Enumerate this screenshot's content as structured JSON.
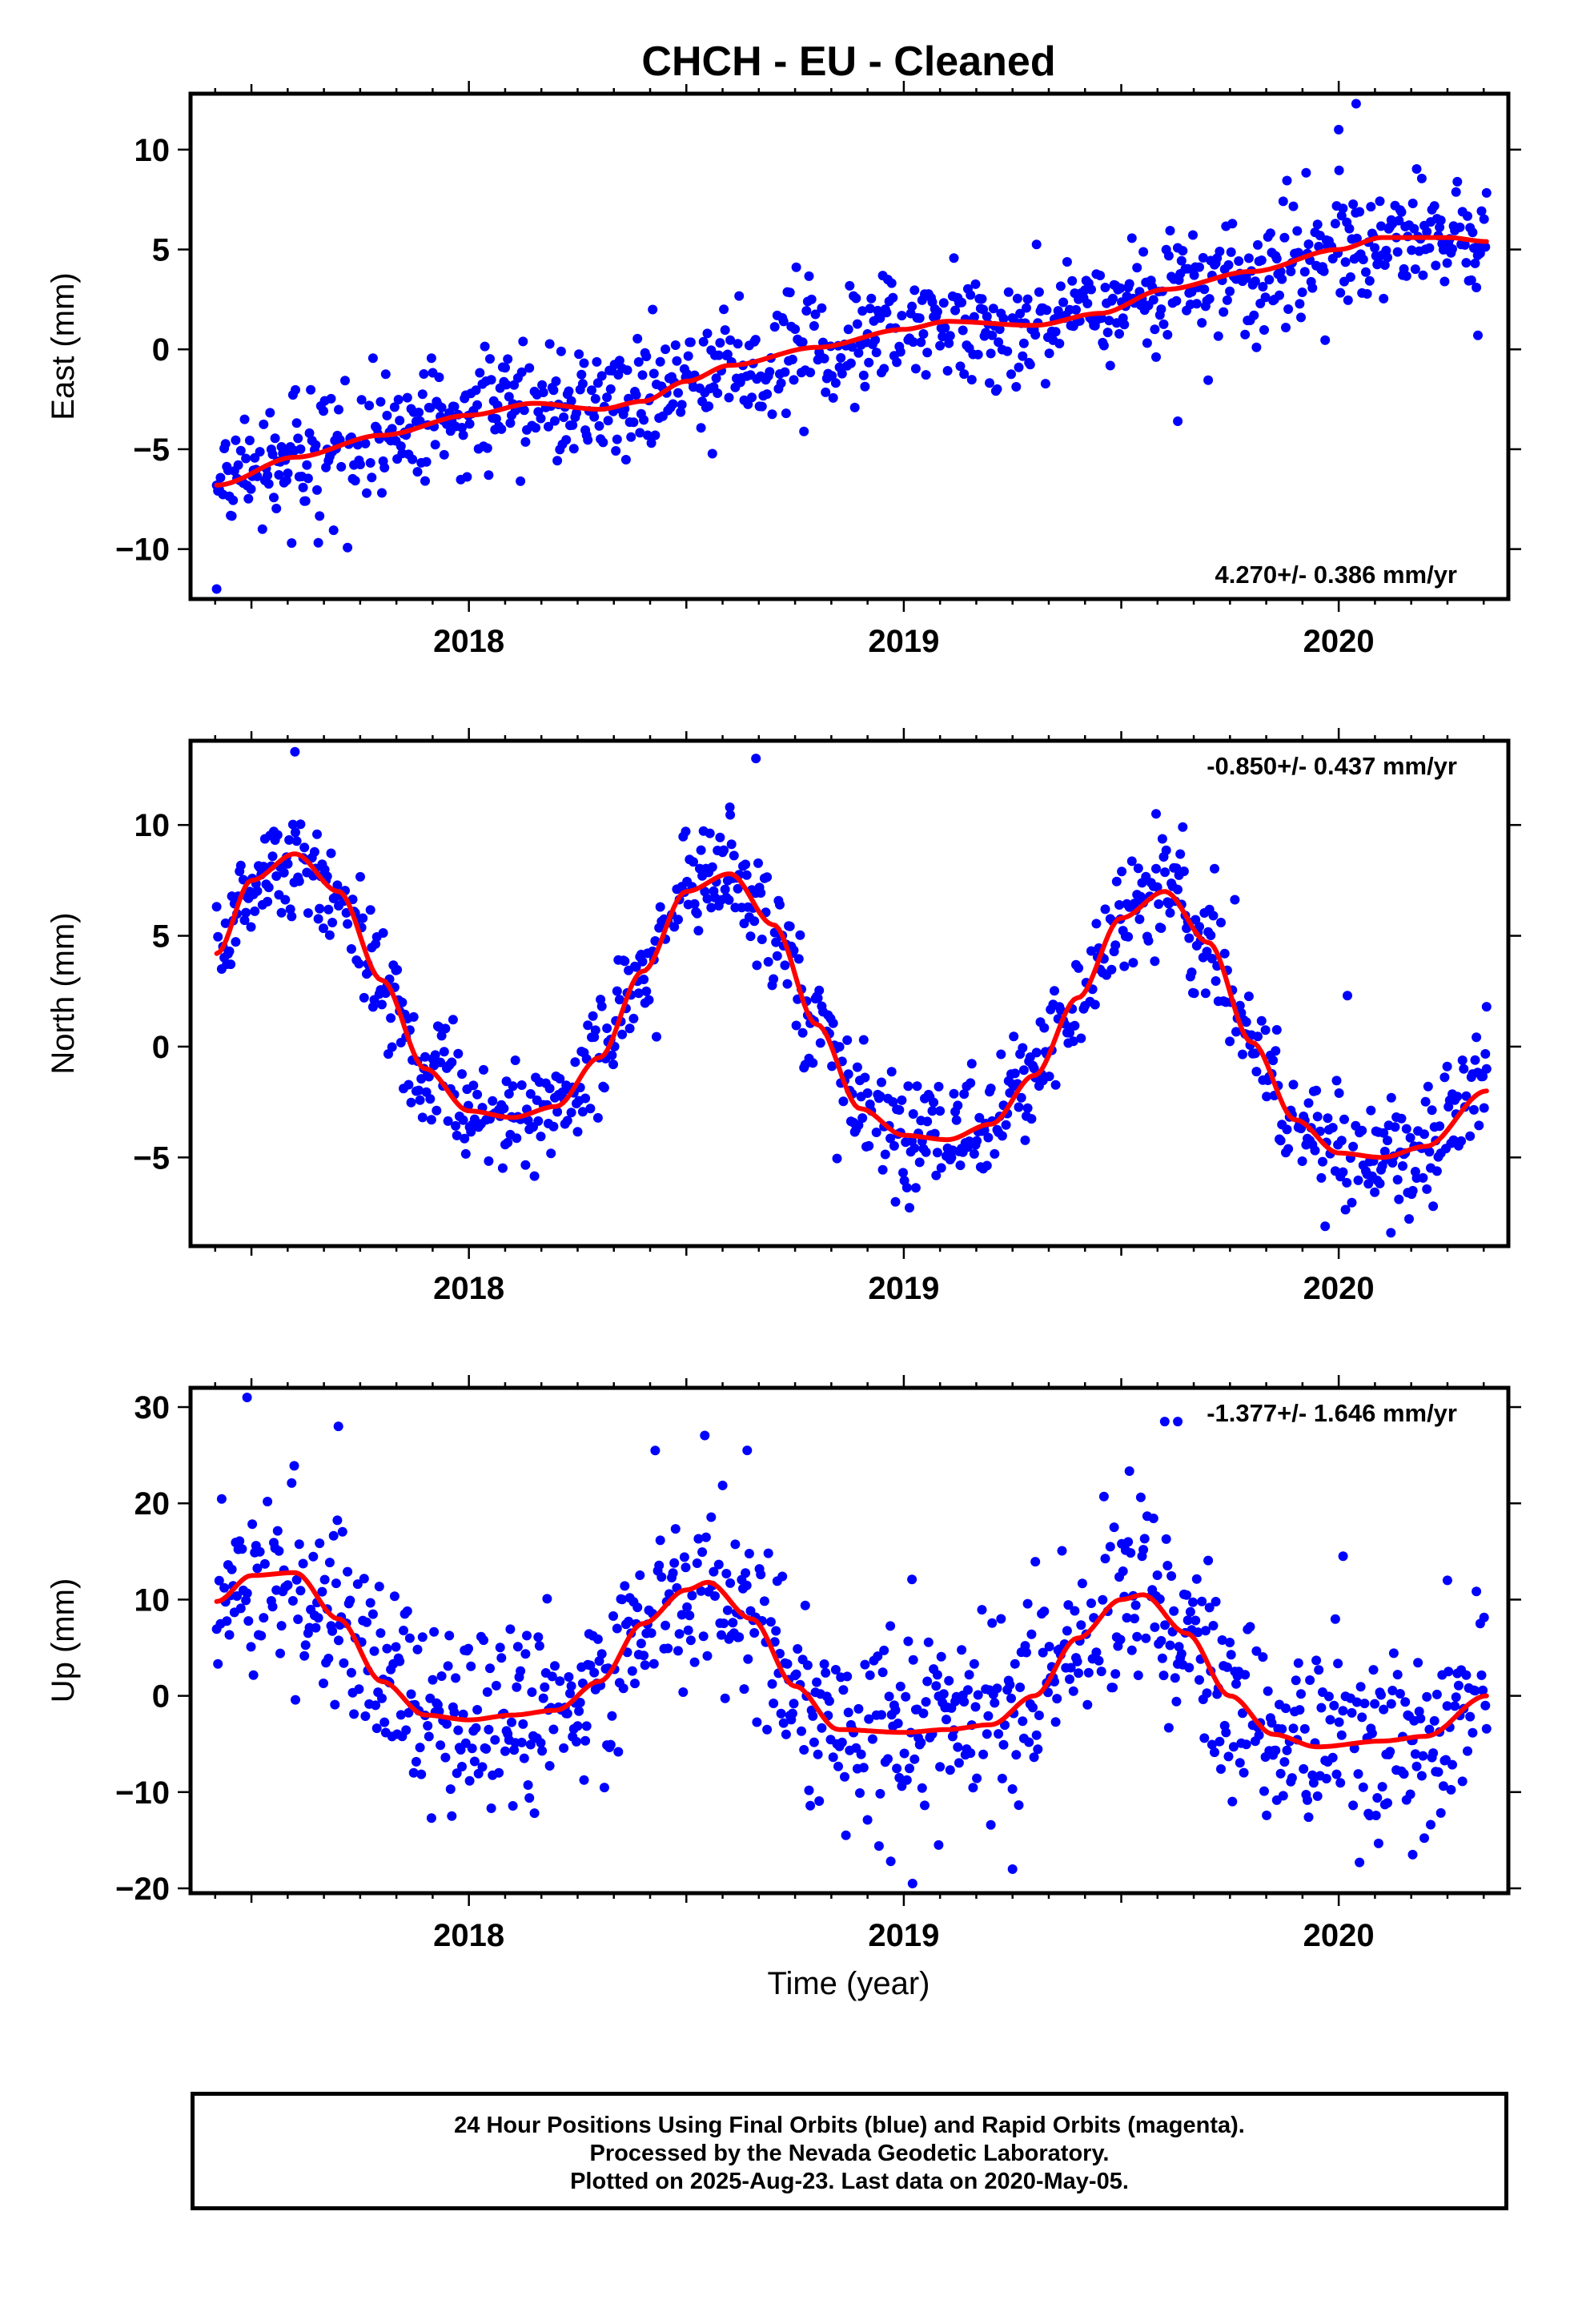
{
  "title": "CHCH  - EU - Cleaned",
  "xlabel": "Time (year)",
  "footer": {
    "line1": "24 Hour Positions Using Final Orbits (blue) and Rapid Orbits (magenta).",
    "line2": "Processed by the Nevada Geodetic Laboratory.",
    "line3": "Plotted on 2025-Aug-23. Last data on 2020-May-05."
  },
  "colors": {
    "points": "#0000ff",
    "fit": "#ff0000",
    "frame": "#000000"
  },
  "chart_data": [
    {
      "type": "scatter",
      "ylabel": "East (mm)",
      "rate_label": "4.270+/- 0.386 mm/yr",
      "rate_position": "bottom-right",
      "xlim": [
        2017.36,
        2020.39
      ],
      "ylim": [
        -12.5,
        12.8
      ],
      "xticks": [
        2018,
        2019,
        2020
      ],
      "yticks": [
        -10,
        -5,
        0,
        5,
        10
      ],
      "fit": {
        "x": [
          2017.42,
          2017.6,
          2017.8,
          2018.0,
          2018.15,
          2018.3,
          2018.4,
          2018.5,
          2018.6,
          2018.8,
          2019.0,
          2019.1,
          2019.3,
          2019.45,
          2019.6,
          2019.8,
          2020.0,
          2020.1,
          2020.25,
          2020.34
        ],
        "y": [
          -6.8,
          -5.4,
          -4.3,
          -3.3,
          -2.7,
          -3.0,
          -2.6,
          -1.6,
          -0.8,
          0.1,
          1.0,
          1.4,
          1.2,
          1.8,
          3.0,
          3.9,
          5.0,
          5.6,
          5.6,
          5.4
        ]
      },
      "points": {
        "x_range": [
          2017.42,
          2020.34
        ],
        "spread": 1.5,
        "outliers": [
          [
            2017.42,
            -12.0
          ],
          [
            2020.04,
            12.3
          ],
          [
            2020.0,
            11.0
          ],
          [
            2019.63,
            -3.6
          ],
          [
            2020.32,
            0.7
          ]
        ]
      }
    },
    {
      "type": "scatter",
      "ylabel": "North (mm)",
      "rate_label": "-0.850+/- 0.437 mm/yr",
      "rate_position": "top-right",
      "xlim": [
        2017.36,
        2020.39
      ],
      "ylim": [
        -9.0,
        13.8
      ],
      "xticks": [
        2018,
        2019,
        2020
      ],
      "yticks": [
        -5,
        0,
        5,
        10
      ],
      "fit": {
        "x": [
          2017.42,
          2017.5,
          2017.6,
          2017.7,
          2017.8,
          2017.9,
          2018.0,
          2018.1,
          2018.2,
          2018.3,
          2018.4,
          2018.5,
          2018.6,
          2018.7,
          2018.8,
          2018.9,
          2019.0,
          2019.1,
          2019.2,
          2019.3,
          2019.4,
          2019.5,
          2019.6,
          2019.7,
          2019.8,
          2019.9,
          2020.0,
          2020.1,
          2020.2,
          2020.34
        ],
        "y": [
          4.2,
          7.5,
          8.7,
          7.0,
          3.0,
          -1.0,
          -2.9,
          -3.2,
          -2.7,
          -0.5,
          3.4,
          7.0,
          7.8,
          5.5,
          1.0,
          -2.8,
          -4.0,
          -4.2,
          -3.5,
          -1.3,
          2.2,
          5.8,
          7.0,
          4.7,
          0.2,
          -3.3,
          -4.8,
          -5.0,
          -4.5,
          -2.0
        ]
      },
      "points": {
        "x_range": [
          2017.42,
          2020.34
        ],
        "spread": 1.3,
        "outliers": [
          [
            2017.6,
            13.3
          ],
          [
            2018.66,
            13.0
          ],
          [
            2018.6,
            10.8
          ],
          [
            2019.58,
            10.5
          ],
          [
            2020.02,
            2.3
          ],
          [
            2020.12,
            -8.4
          ],
          [
            2020.34,
            1.8
          ]
        ]
      }
    },
    {
      "type": "scatter",
      "ylabel": "Up (mm)",
      "rate_label": "-1.377+/- 1.646 mm/yr",
      "rate_position": "top-right",
      "xlim": [
        2017.36,
        2020.39
      ],
      "ylim": [
        -20.5,
        32.0
      ],
      "xticks": [
        2018,
        2019,
        2020
      ],
      "yticks": [
        -20,
        -10,
        0,
        10,
        20,
        30
      ],
      "fit": {
        "x": [
          2017.42,
          2017.5,
          2017.6,
          2017.7,
          2017.8,
          2017.9,
          2018.0,
          2018.1,
          2018.2,
          2018.3,
          2018.4,
          2018.5,
          2018.55,
          2018.65,
          2018.75,
          2018.85,
          2019.0,
          2019.1,
          2019.2,
          2019.3,
          2019.4,
          2019.5,
          2019.55,
          2019.65,
          2019.75,
          2019.85,
          2019.95,
          2020.1,
          2020.2,
          2020.34
        ],
        "y": [
          9.8,
          12.5,
          12.8,
          8.0,
          1.5,
          -2.0,
          -2.5,
          -2.0,
          -1.5,
          1.5,
          7.5,
          11.0,
          11.8,
          8.0,
          1.0,
          -3.5,
          -3.8,
          -3.5,
          -3.0,
          0.0,
          6.0,
          10.0,
          10.5,
          6.5,
          0.0,
          -4.0,
          -5.3,
          -4.7,
          -4.2,
          0.0
        ]
      },
      "points": {
        "x_range": [
          2017.42,
          2020.34
        ],
        "spread": 5.0,
        "outliers": [
          [
            2017.49,
            31.0
          ],
          [
            2017.7,
            28.0
          ],
          [
            2018.64,
            25.5
          ],
          [
            2019.6,
            28.5
          ],
          [
            2019.63,
            28.5
          ],
          [
            2019.02,
            -19.5
          ],
          [
            2019.25,
            -18.0
          ],
          [
            2018.97,
            -17.2
          ],
          [
            2019.08,
            -15.5
          ],
          [
            2020.17,
            -16.5
          ],
          [
            2020.01,
            14.5
          ],
          [
            2020.25,
            12.0
          ]
        ]
      }
    }
  ]
}
